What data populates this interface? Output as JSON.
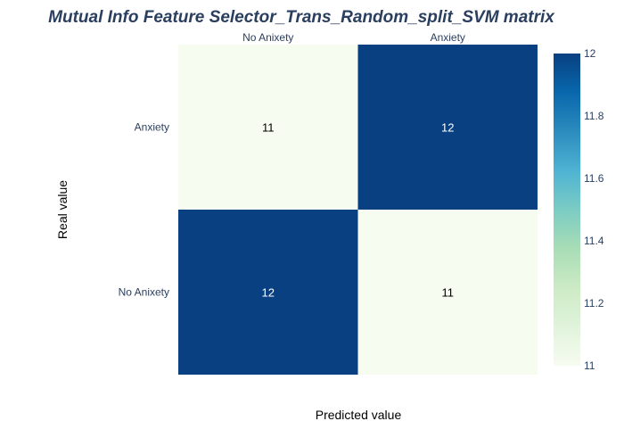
{
  "chart_data": {
    "type": "heatmap",
    "title": "Mutual Info Feature Selector_Trans_Random_split_SVM matrix",
    "xlabel": "Predicted value",
    "ylabel": "Real value",
    "x_categories": [
      "No Anixety",
      "Anxiety"
    ],
    "y_categories": [
      "Anxiety",
      "No Anixety"
    ],
    "z": [
      [
        11,
        12
      ],
      [
        12,
        11
      ]
    ],
    "cell_labels": [
      [
        "11",
        "12"
      ],
      [
        "12",
        "11"
      ]
    ],
    "x_axis_side": "top",
    "zrange": [
      11,
      12
    ],
    "colorbar": {
      "ticks": [
        11,
        11.2,
        11.4,
        11.6,
        11.8,
        12
      ],
      "tick_labels": [
        "11",
        "11.2",
        "11.4",
        "11.6",
        "11.8",
        "12"
      ],
      "colorscale": [
        [
          0.0,
          "#f7fcf0"
        ],
        [
          0.125,
          "#e0f3db"
        ],
        [
          0.25,
          "#ccebc5"
        ],
        [
          0.375,
          "#a8ddb5"
        ],
        [
          0.5,
          "#7bccc4"
        ],
        [
          0.625,
          "#4eb3d3"
        ],
        [
          0.75,
          "#2b8cbe"
        ],
        [
          0.875,
          "#0868ac"
        ],
        [
          1.0,
          "#084081"
        ]
      ]
    }
  },
  "colors": {
    "text": "#2a3f5f",
    "title": "#2a3f5f",
    "axis_label": "#000000",
    "cell_text_dark": "#000000",
    "cell_text_light": "#ffffff"
  }
}
